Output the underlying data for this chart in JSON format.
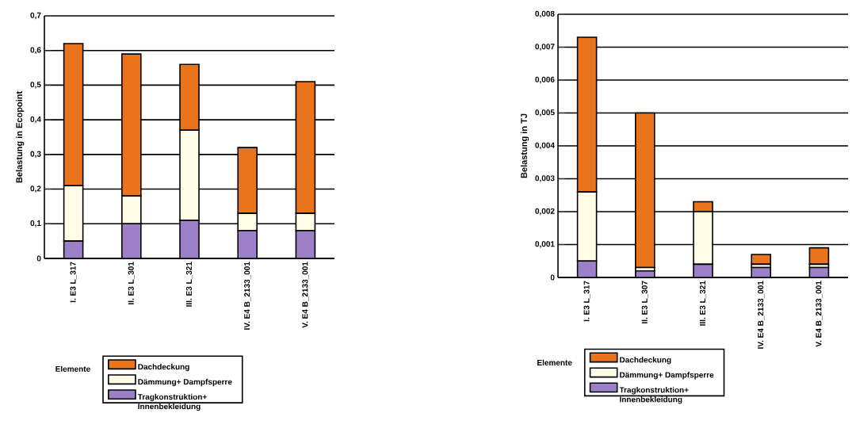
{
  "chart_data": [
    {
      "type": "bar",
      "stacked": true,
      "ylabel": "Belastung in Ecopoint",
      "legend_title": "Elemente",
      "legend": "bottom",
      "grid": "y",
      "categories": [
        "I. E3 L_317",
        "II. E3 L_301",
        "III. E3 L_321",
        "IV. E4 B_2133_001",
        "V. E4 B_2133_001"
      ],
      "ylim": [
        0,
        0.7
      ],
      "yticks": [
        0,
        {
          "value": 0.1,
          "label": "0,1"
        },
        {
          "value": 0.2,
          "label": "0,2"
        },
        {
          "value": 0.3,
          "label": "0,3"
        },
        {
          "value": 0.4,
          "label": "0,4"
        },
        {
          "value": 0.5,
          "label": "0,5"
        },
        {
          "value": 0.6,
          "label": "0,6"
        },
        {
          "value": 0.7,
          "label": "0,7"
        }
      ],
      "series": [
        {
          "name": "Tragkonstruktion+ Innenbekleidung",
          "color": "#9b80c8",
          "values": [
            0.05,
            0.1,
            0.11,
            0.08,
            0.08
          ]
        },
        {
          "name": "Dämmung+ Dampfsperre",
          "color": "#fffde6",
          "values": [
            0.16,
            0.08,
            0.26,
            0.05,
            0.05
          ]
        },
        {
          "name": "Dachdeckung",
          "color": "#ea741c",
          "values": [
            0.41,
            0.41,
            0.19,
            0.19,
            0.38
          ]
        }
      ]
    },
    {
      "type": "bar",
      "stacked": true,
      "ylabel": "Belastung in TJ",
      "legend_title": "Elemente",
      "legend": "bottom",
      "grid": "y",
      "categories": [
        "I. E3 L_317",
        "II. E3 L_307",
        "III. E3 L_321",
        "IV. E4 B_2133_001",
        "V. E4 B_2133_001"
      ],
      "ylim": [
        0,
        0.008
      ],
      "yticks": [
        0,
        {
          "value": 0.001,
          "label": "0,001"
        },
        {
          "value": 0.002,
          "label": "0,002"
        },
        {
          "value": 0.003,
          "label": "0,003"
        },
        {
          "value": 0.004,
          "label": "0,004"
        },
        {
          "value": 0.005,
          "label": "0,005"
        },
        {
          "value": 0.006,
          "label": "0,006"
        },
        {
          "value": 0.007,
          "label": "0,007"
        },
        {
          "value": 0.008,
          "label": "0,008"
        }
      ],
      "series": [
        {
          "name": "Tragkonstruktion+ Innenbekleidung",
          "color": "#9b80c8",
          "values": [
            0.0005,
            0.0002,
            0.0004,
            0.0003,
            0.0003
          ]
        },
        {
          "name": "Dämmung+ Dampfsperre",
          "color": "#fffde6",
          "values": [
            0.0021,
            0.0001,
            0.0016,
            0.0001,
            0.0001
          ]
        },
        {
          "name": "Dachdeckung",
          "color": "#ea741c",
          "values": [
            0.0047,
            0.0047,
            0.0003,
            0.0003,
            0.0005
          ]
        }
      ]
    }
  ]
}
